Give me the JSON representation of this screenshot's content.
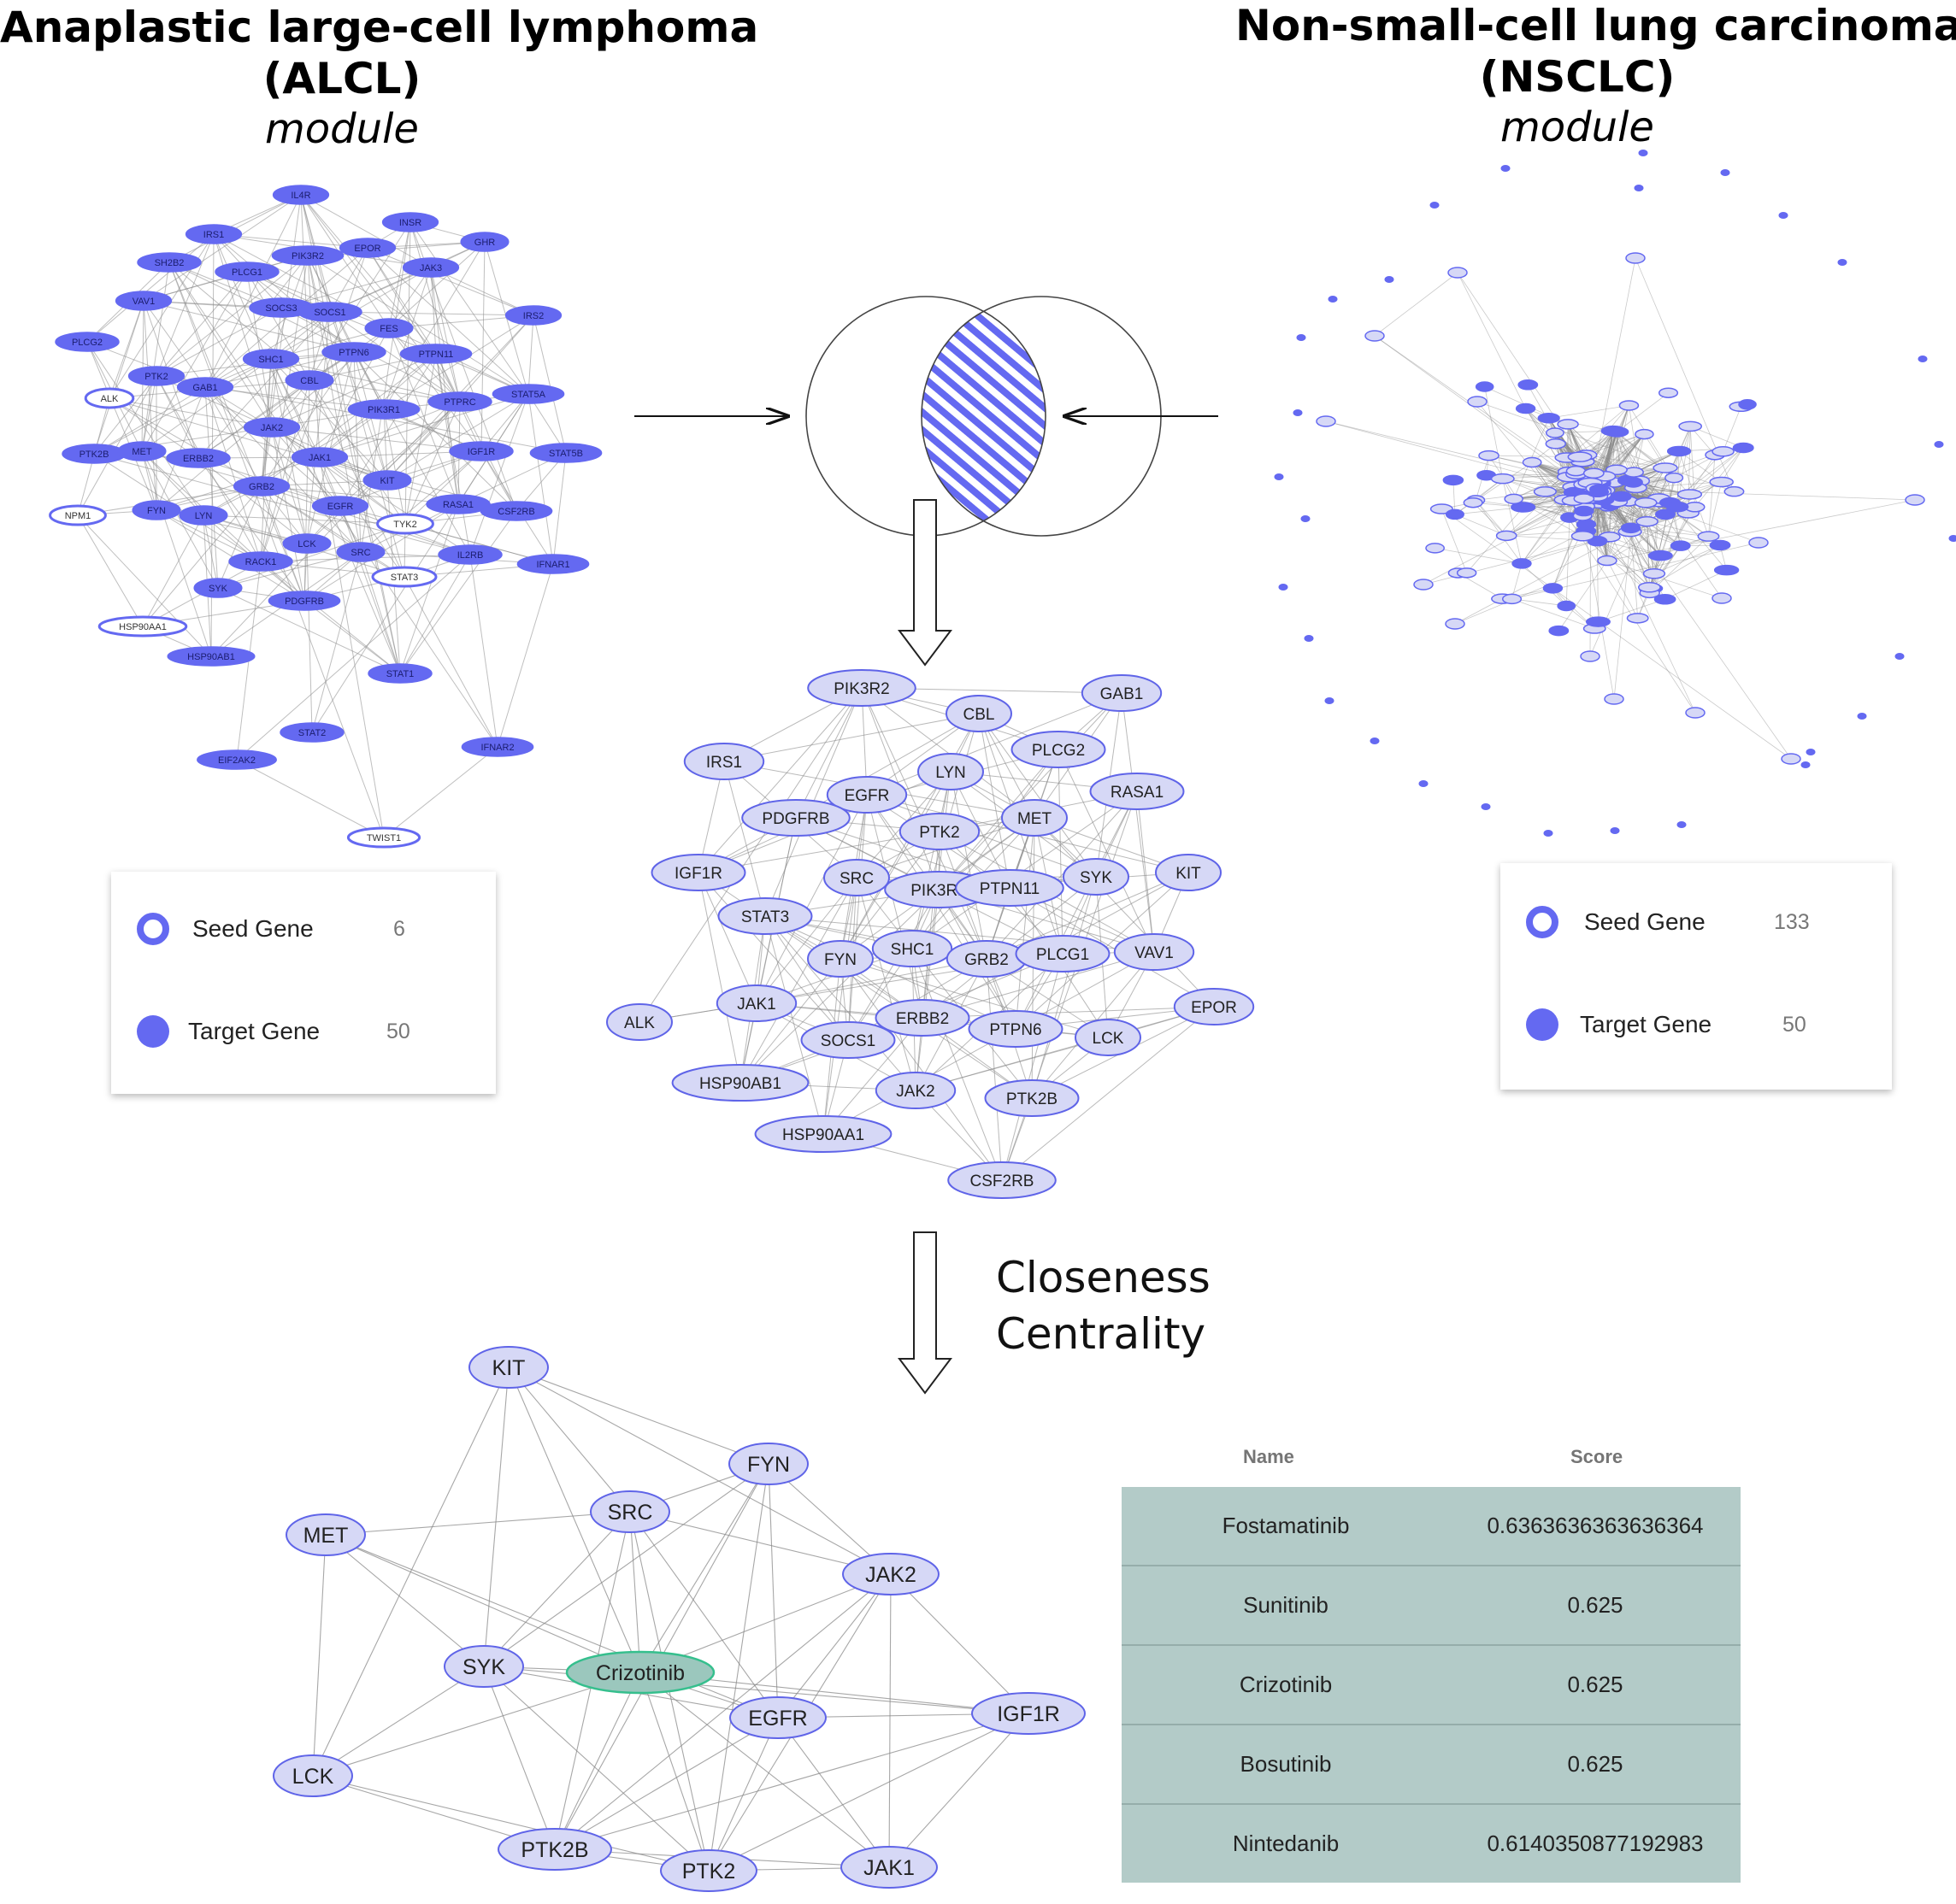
{
  "alcl": {
    "title_line1": "Anaplastic large-cell lymphoma",
    "title_line2": "(ALCL)",
    "subtitle": "module",
    "nodes": [
      {
        "label": "IL4R",
        "seed": false
      },
      {
        "label": "IRS1",
        "seed": false
      },
      {
        "label": "INSR",
        "seed": false
      },
      {
        "label": "SH2B2",
        "seed": false
      },
      {
        "label": "PLCG1",
        "seed": false
      },
      {
        "label": "PIK3R2",
        "seed": false
      },
      {
        "label": "EPOR",
        "seed": false
      },
      {
        "label": "JAK3",
        "seed": false
      },
      {
        "label": "GHR",
        "seed": false
      },
      {
        "label": "VAV1",
        "seed": false
      },
      {
        "label": "SOCS3",
        "seed": false
      },
      {
        "label": "SOCS1",
        "seed": false
      },
      {
        "label": "IRS2",
        "seed": false
      },
      {
        "label": "FES",
        "seed": false
      },
      {
        "label": "PLCG2",
        "seed": false
      },
      {
        "label": "PTPN6",
        "seed": false
      },
      {
        "label": "SHC1",
        "seed": false
      },
      {
        "label": "PTPN11",
        "seed": false
      },
      {
        "label": "PTK2",
        "seed": false
      },
      {
        "label": "GAB1",
        "seed": false
      },
      {
        "label": "CBL",
        "seed": false
      },
      {
        "label": "ALK",
        "seed": true
      },
      {
        "label": "PIK3R1",
        "seed": false
      },
      {
        "label": "PTPRC",
        "seed": false
      },
      {
        "label": "STAT5A",
        "seed": false
      },
      {
        "label": "JAK2",
        "seed": false
      },
      {
        "label": "PTK2B",
        "seed": false
      },
      {
        "label": "MET",
        "seed": false
      },
      {
        "label": "ERBB2",
        "seed": false
      },
      {
        "label": "JAK1",
        "seed": false
      },
      {
        "label": "IGF1R",
        "seed": false
      },
      {
        "label": "STAT5B",
        "seed": false
      },
      {
        "label": "GRB2",
        "seed": false
      },
      {
        "label": "KIT",
        "seed": false
      },
      {
        "label": "NPM1",
        "seed": true
      },
      {
        "label": "FYN",
        "seed": false
      },
      {
        "label": "LYN",
        "seed": false
      },
      {
        "label": "EGFR",
        "seed": false
      },
      {
        "label": "RASA1",
        "seed": false
      },
      {
        "label": "CSF2RB",
        "seed": false
      },
      {
        "label": "TYK2",
        "seed": true
      },
      {
        "label": "LCK",
        "seed": false
      },
      {
        "label": "SRC",
        "seed": false
      },
      {
        "label": "IL2RB",
        "seed": false
      },
      {
        "label": "RACK1",
        "seed": false
      },
      {
        "label": "IFNAR1",
        "seed": false
      },
      {
        "label": "STAT3",
        "seed": true
      },
      {
        "label": "SYK",
        "seed": false
      },
      {
        "label": "PDGFRB",
        "seed": false
      },
      {
        "label": "HSP90AA1",
        "seed": true
      },
      {
        "label": "HSP90AB1",
        "seed": false
      },
      {
        "label": "STAT1",
        "seed": false
      },
      {
        "label": "STAT2",
        "seed": false
      },
      {
        "label": "EIF2AK2",
        "seed": false
      },
      {
        "label": "IFNAR2",
        "seed": false
      },
      {
        "label": "TWIST1",
        "seed": true
      }
    ],
    "legend": {
      "seed_label": "Seed Gene",
      "seed_count": "6",
      "target_label": "Target Gene",
      "target_count": "50"
    }
  },
  "nsclc": {
    "title_line1": "Non-small-cell lung carcinoma",
    "title_line2": "(NSCLC)",
    "subtitle": "module",
    "legend": {
      "seed_label": "Seed Gene",
      "seed_count": "133",
      "target_label": "Target Gene",
      "target_count": "50"
    }
  },
  "intersection": {
    "nodes": [
      "PIK3R2",
      "GAB1",
      "CBL",
      "IRS1",
      "PLCG2",
      "LYN",
      "EGFR",
      "RASA1",
      "PDGFRB",
      "MET",
      "PTK2",
      "IGF1R",
      "SRC",
      "PIK3R1",
      "PTPN11",
      "SYK",
      "KIT",
      "STAT3",
      "SHC1",
      "FYN",
      "GRB2",
      "PLCG1",
      "VAV1",
      "EPOR",
      "JAK1",
      "ERBB2",
      "ALK",
      "SOCS1",
      "PTPN6",
      "LCK",
      "HSP90AB1",
      "JAK2",
      "PTK2B",
      "HSP90AA1",
      "CSF2RB"
    ]
  },
  "closeness": {
    "label_line1": "Closeness",
    "label_line2": "Centrality"
  },
  "drug_network": {
    "drug": "Crizotinib",
    "genes": [
      "KIT",
      "FYN",
      "SRC",
      "MET",
      "JAK2",
      "SYK",
      "EGFR",
      "IGF1R",
      "LCK",
      "PTK2B",
      "PTK2",
      "JAK1"
    ]
  },
  "table": {
    "headers": {
      "name": "Name",
      "score": "Score"
    },
    "rows": [
      {
        "name": "Fostamatinib",
        "score": "0.6363636363636364"
      },
      {
        "name": "Sunitinib",
        "score": "0.625"
      },
      {
        "name": "Crizotinib",
        "score": "0.625"
      },
      {
        "name": "Bosutinib",
        "score": "0.625"
      },
      {
        "name": "Nintedanib",
        "score": "0.6140350877192983"
      }
    ]
  },
  "colors": {
    "node_blue": "#6469f1",
    "node_light": "#d6d8f6",
    "node_border": "#5f64e8",
    "drug_fill": "#9bc7bd",
    "drug_border": "#35bf8d",
    "table_bg": "#b3cbc8",
    "edge": "#8a8a8a"
  }
}
